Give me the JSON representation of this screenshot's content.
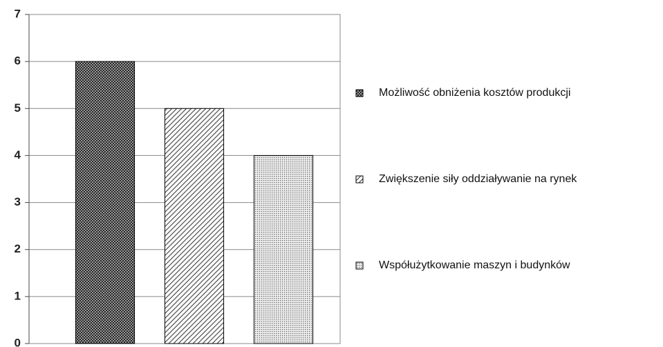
{
  "chart_data": {
    "type": "bar",
    "categories": [
      null
    ],
    "series": [
      {
        "name": "Możliwość obniżenia kosztów produkcji",
        "color": "#444444",
        "pattern": "crosshatch",
        "values": [
          6
        ]
      },
      {
        "name": "Zwiększenie siły oddziaływanie na rynek",
        "color": "#666666",
        "pattern": "diagonal",
        "values": [
          5
        ]
      },
      {
        "name": "Współużytkowanie maszyn i budynków",
        "color": "#888888",
        "pattern": "dots",
        "values": [
          4
        ]
      }
    ],
    "ylim": [
      0,
      7
    ],
    "yticks": [
      0,
      1,
      2,
      3,
      4,
      5,
      6,
      7
    ],
    "grid": true,
    "legend": "right"
  }
}
